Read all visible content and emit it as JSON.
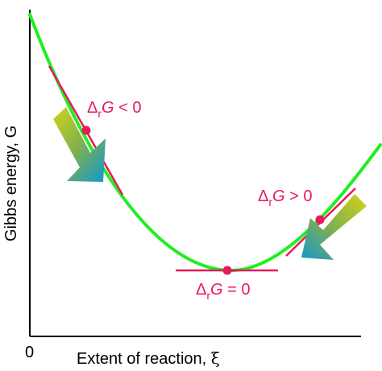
{
  "axes": {
    "y_label": "Gibbs energy, G",
    "x_label_text": "Extent of reaction,",
    "x_label_symbol": "ξ",
    "origin_label": "0"
  },
  "annotations": {
    "left": {
      "delta": "Δ",
      "sub": "r",
      "g": "G",
      "rel": " < 0"
    },
    "right": {
      "delta": "Δ",
      "sub": "r",
      "g": "G",
      "rel": " > 0"
    },
    "bottom": {
      "delta": "Δ",
      "sub": "r",
      "g": "G",
      "rel": " = 0"
    }
  },
  "colors": {
    "curve": "#22ee22",
    "tangent": "#e8185a",
    "point": "#e8185a",
    "arrow_start": "#d4d21a",
    "arrow_end": "#1f9bbf",
    "axis": "#000000"
  },
  "icons": {
    "left_arrow": "downhill-arrow-icon",
    "right_arrow": "downhill-arrow-icon"
  }
}
